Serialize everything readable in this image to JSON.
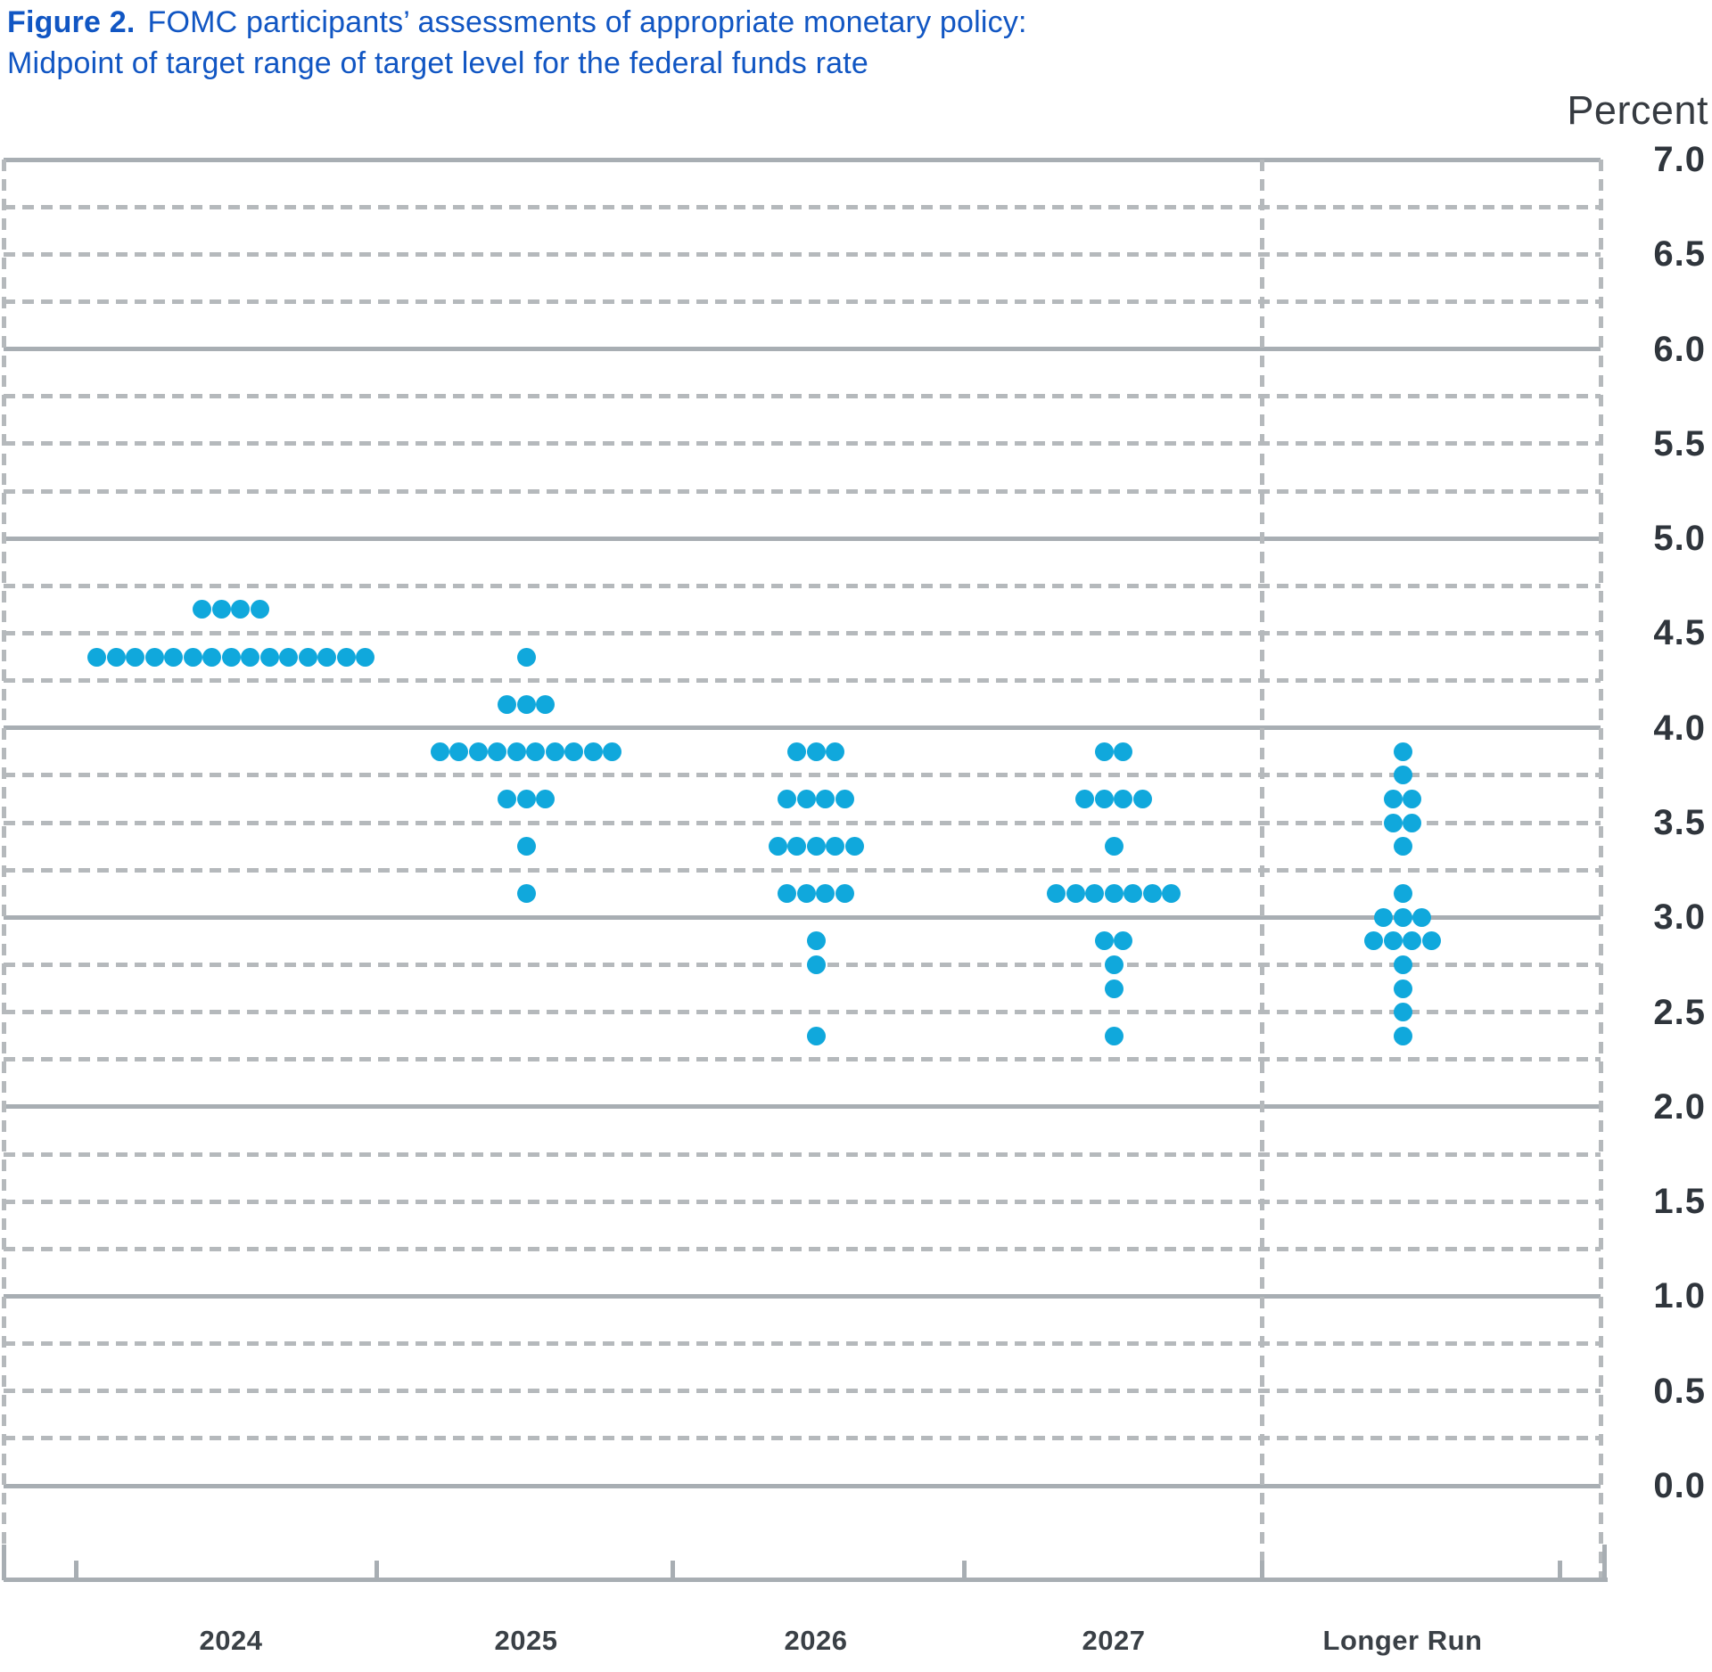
{
  "figure": {
    "label": "Figure 2.",
    "title_rest": "FOMC participants’ assessments of appropriate monetary policy:",
    "title_line2": "Midpoint of target range of target level for the federal funds rate"
  },
  "axis": {
    "unit": "Percent",
    "y_labels": [
      "7.0",
      "6.5",
      "6.0",
      "5.5",
      "5.0",
      "4.5",
      "4.0",
      "3.5",
      "3.0",
      "2.5",
      "2.0",
      "1.5",
      "1.0",
      "0.5",
      "0.0"
    ],
    "x_labels": [
      "2024",
      "2025",
      "2026",
      "2027",
      "Longer Run"
    ]
  },
  "chart_data": {
    "type": "scatter",
    "subtype": "fomc-dot-plot",
    "title": "Figure 2. FOMC participants’ assessments of appropriate monetary policy: Midpoint of target range of target level for the federal funds rate",
    "ylabel": "Percent",
    "ylim": [
      0.0,
      7.0
    ],
    "y_solid_gridlines": [
      0.0,
      1.0,
      2.0,
      3.0,
      4.0,
      5.0,
      6.0,
      7.0
    ],
    "y_dashed_gridline_step": 0.25,
    "grid": "on",
    "legend": "none",
    "categories": [
      "2024",
      "2025",
      "2026",
      "2027",
      "Longer Run"
    ],
    "series": [
      {
        "name": "2024",
        "dots": [
          {
            "value": 4.625,
            "count": 4
          },
          {
            "value": 4.375,
            "count": 15
          }
        ]
      },
      {
        "name": "2025",
        "dots": [
          {
            "value": 4.375,
            "count": 1
          },
          {
            "value": 4.125,
            "count": 3
          },
          {
            "value": 3.875,
            "count": 10
          },
          {
            "value": 3.625,
            "count": 3
          },
          {
            "value": 3.375,
            "count": 1
          },
          {
            "value": 3.125,
            "count": 1
          }
        ]
      },
      {
        "name": "2026",
        "dots": [
          {
            "value": 3.875,
            "count": 3
          },
          {
            "value": 3.625,
            "count": 4
          },
          {
            "value": 3.375,
            "count": 5
          },
          {
            "value": 3.125,
            "count": 4
          },
          {
            "value": 2.875,
            "count": 1
          },
          {
            "value": 2.75,
            "count": 1
          },
          {
            "value": 2.375,
            "count": 1
          }
        ]
      },
      {
        "name": "2027",
        "dots": [
          {
            "value": 3.875,
            "count": 2
          },
          {
            "value": 3.625,
            "count": 4
          },
          {
            "value": 3.375,
            "count": 1
          },
          {
            "value": 3.125,
            "count": 7
          },
          {
            "value": 2.875,
            "count": 2
          },
          {
            "value": 2.75,
            "count": 1
          },
          {
            "value": 2.625,
            "count": 1
          },
          {
            "value": 2.375,
            "count": 1
          }
        ]
      },
      {
        "name": "Longer Run",
        "dots": [
          {
            "value": 3.875,
            "count": 1
          },
          {
            "value": 3.75,
            "count": 1
          },
          {
            "value": 3.625,
            "count": 2
          },
          {
            "value": 3.5,
            "count": 2
          },
          {
            "value": 3.375,
            "count": 1
          },
          {
            "value": 3.125,
            "count": 1
          },
          {
            "value": 3.0,
            "count": 3
          },
          {
            "value": 2.875,
            "count": 4
          },
          {
            "value": 2.75,
            "count": 1
          },
          {
            "value": 2.625,
            "count": 1
          },
          {
            "value": 2.5,
            "count": 1
          },
          {
            "value": 2.375,
            "count": 1
          }
        ]
      }
    ]
  },
  "colors": {
    "title_blue": "#1156c3",
    "dot_cyan": "#10a8dc",
    "grid_gray": "#a8aeb3",
    "dashed_gray": "#b5b9bc",
    "label_dark": "#2f353c"
  }
}
